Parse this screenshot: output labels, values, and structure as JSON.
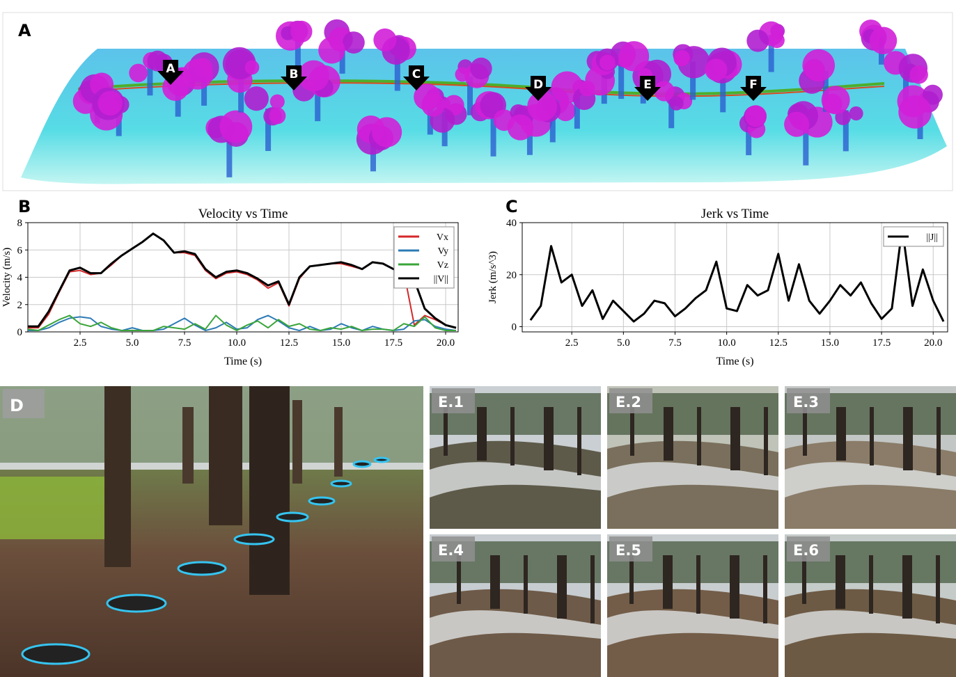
{
  "panel_labels": [
    "A",
    "B",
    "C",
    "D",
    "E.1",
    "E.2",
    "E.3",
    "E.4",
    "E.5",
    "E.6"
  ],
  "point_cloud_markers": [
    "A",
    "B",
    "C",
    "D",
    "E",
    "F"
  ],
  "chart_data": [
    {
      "type": "line",
      "title": "Velocity vs Time",
      "x_label": "Time (s)",
      "y_label": "Velocity (m/s)",
      "x": [
        0,
        0.5,
        1,
        1.5,
        2,
        2.5,
        3,
        3.5,
        4,
        4.5,
        5,
        5.5,
        6,
        6.5,
        7,
        7.5,
        8,
        8.5,
        9,
        9.5,
        10,
        10.5,
        11,
        11.5,
        12,
        12.5,
        13,
        13.5,
        14,
        14.5,
        15,
        15.5,
        16,
        16.5,
        17,
        17.5,
        18,
        18.5,
        19,
        19.5,
        20,
        20.5
      ],
      "series": [
        {
          "name": "Vx",
          "color": "#d62728",
          "values": [
            0.3,
            0.3,
            1.3,
            2.9,
            4.4,
            4.5,
            4.2,
            4.3,
            4.9,
            5.6,
            6.1,
            6.6,
            7.2,
            6.7,
            5.8,
            5.8,
            5.6,
            4.5,
            3.9,
            4.3,
            4.4,
            4.2,
            3.8,
            3.2,
            3.6,
            1.9,
            3.9,
            4.8,
            4.9,
            5.0,
            5.0,
            4.8,
            4.6,
            5.1,
            5.0,
            4.6,
            4.4,
            0.5,
            1.2,
            0.9,
            0.5,
            0.3
          ]
        },
        {
          "name": "Vy",
          "color": "#2c7bb6",
          "values": [
            0.1,
            0.1,
            0.3,
            0.7,
            1.0,
            1.1,
            1.0,
            0.4,
            0.2,
            0.1,
            0.3,
            0.1,
            0.1,
            0.2,
            0.6,
            1.0,
            0.5,
            0.1,
            0.3,
            0.7,
            0.2,
            0.3,
            0.9,
            1.2,
            0.8,
            0.3,
            0.1,
            0.4,
            0.1,
            0.2,
            0.6,
            0.3,
            0.1,
            0.4,
            0.2,
            0.1,
            0.2,
            0.8,
            0.9,
            0.4,
            0.2,
            0.1
          ]
        },
        {
          "name": "Vz",
          "color": "#3aa53a",
          "values": [
            0.2,
            0.1,
            0.5,
            0.9,
            1.2,
            0.6,
            0.4,
            0.7,
            0.3,
            0.1,
            0.1,
            0.1,
            0.1,
            0.4,
            0.3,
            0.2,
            0.6,
            0.2,
            1.2,
            0.5,
            0.1,
            0.5,
            0.8,
            0.3,
            0.9,
            0.4,
            0.6,
            0.2,
            0.1,
            0.3,
            0.2,
            0.4,
            0.1,
            0.2,
            0.2,
            0.1,
            0.6,
            0.4,
            1.1,
            0.3,
            0.1,
            0.1
          ]
        },
        {
          "name": "||V||",
          "color": "#000000",
          "values": [
            0.4,
            0.4,
            1.5,
            3.0,
            4.5,
            4.7,
            4.3,
            4.3,
            5.0,
            5.6,
            6.1,
            6.6,
            7.2,
            6.7,
            5.8,
            5.9,
            5.7,
            4.6,
            4.0,
            4.4,
            4.5,
            4.3,
            3.9,
            3.4,
            3.7,
            2.0,
            4.0,
            4.8,
            4.9,
            5.0,
            5.1,
            4.9,
            4.6,
            5.1,
            5.0,
            4.6,
            4.4,
            3.8,
            1.7,
            1.0,
            0.5,
            0.3
          ]
        }
      ],
      "xlim": [
        0,
        20.6
      ],
      "ylim": [
        0,
        8
      ],
      "xticks": [
        2.5,
        {
          "value": 5,
          "label": "5.0"
        },
        7.5,
        {
          "value": 10,
          "label": "10.0"
        },
        12.5,
        {
          "value": 15,
          "label": "15.0"
        },
        17.5,
        {
          "value": 20,
          "label": "20.0"
        }
      ],
      "yticks": [
        0,
        2,
        4,
        6,
        8
      ],
      "grid": true,
      "legend": "upper-right"
    },
    {
      "type": "line",
      "title": "Jerk vs Time",
      "x_label": "Time (s)",
      "y_label": "Jerk (m/s^3)",
      "x": [
        0.5,
        1,
        1.5,
        2,
        2.5,
        3,
        3.5,
        4,
        4.5,
        5,
        5.5,
        6,
        6.5,
        7,
        7.5,
        8,
        8.5,
        9,
        9.5,
        10,
        10.5,
        11,
        11.5,
        12,
        12.5,
        13,
        13.5,
        14,
        14.5,
        15,
        15.5,
        16,
        16.5,
        17,
        17.5,
        18,
        18.5,
        19,
        19.5,
        20,
        20.5
      ],
      "series": [
        {
          "name": "||J||",
          "color": "#000000",
          "values": [
            2.5,
            8,
            31,
            17,
            20,
            8,
            14,
            3,
            10,
            6,
            2,
            5,
            10,
            9,
            4,
            7,
            11,
            14,
            25,
            7,
            6,
            16,
            12,
            14,
            28,
            10,
            24,
            10,
            5,
            10,
            16,
            12,
            17,
            9,
            3,
            7,
            38,
            8,
            22,
            10,
            2
          ]
        }
      ],
      "xlim": [
        0.1,
        20.7
      ],
      "ylim": [
        -2,
        40
      ],
      "xticks": [
        2.5,
        {
          "value": 5,
          "label": "5.0"
        },
        7.5,
        {
          "value": 10,
          "label": "10.0"
        },
        12.5,
        {
          "value": 15,
          "label": "15.0"
        },
        17.5,
        {
          "value": 20,
          "label": "20.0"
        }
      ],
      "yticks": [
        0,
        20,
        40
      ],
      "grid": true,
      "legend": "upper-right"
    }
  ]
}
